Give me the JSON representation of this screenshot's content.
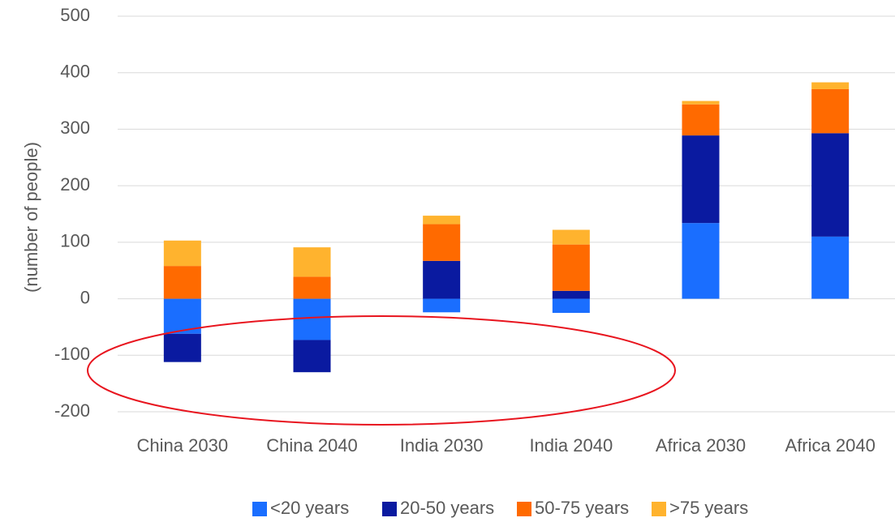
{
  "chart_data": {
    "type": "bar",
    "stacked": true,
    "title": "",
    "xlabel": "",
    "ylabel": "(number of people)",
    "ylim": [
      -200,
      500
    ],
    "yticks": [
      -200,
      -100,
      0,
      100,
      200,
      300,
      400,
      500
    ],
    "grid": true,
    "legend_position": "bottom",
    "categories": [
      "China 2030",
      "China 2040",
      "India 2030",
      "India 2040",
      "Africa 2030",
      "Africa 2040"
    ],
    "series": [
      {
        "name": "<20 years",
        "color": "#1A6EFF",
        "values": [
          -62,
          -73,
          -24,
          -25,
          134,
          110
        ]
      },
      {
        "name": "20-50 years",
        "color": "#0A1AA0",
        "values": [
          -50,
          -57,
          67,
          14,
          155,
          183
        ]
      },
      {
        "name": "50-75 years",
        "color": "#FF6A00",
        "values": [
          58,
          39,
          65,
          82,
          55,
          78
        ]
      },
      {
        "name": ">75 years",
        "color": "#FFB32E",
        "values": [
          45,
          52,
          15,
          26,
          6,
          12
        ]
      }
    ],
    "annotation": {
      "type": "ellipse",
      "color": "#E8141E",
      "description": "highlights negative values for China and India"
    }
  }
}
